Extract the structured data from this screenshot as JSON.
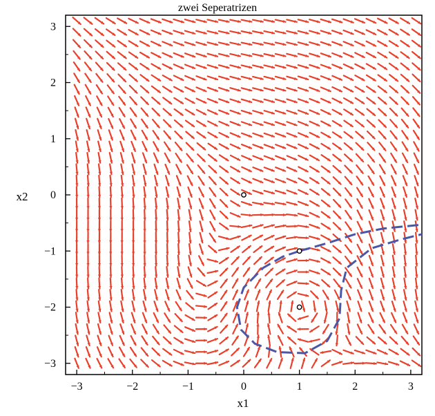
{
  "chart_data": {
    "type": "vector-field",
    "title": "zwei Seperatrizen",
    "xlabel": "x1",
    "ylabel": "x2",
    "xlim": [
      -3.2,
      3.2
    ],
    "ylim": [
      -3.2,
      3.2
    ],
    "xticks": [
      -3,
      -2,
      -1,
      0,
      1,
      2,
      3
    ],
    "yticks": [
      -3,
      -2,
      -1,
      0,
      1,
      2,
      3
    ],
    "xtick_labels": [
      "−3",
      "−2",
      "−1",
      "0",
      "1",
      "2",
      "3"
    ],
    "ytick_labels": [
      "−3",
      "−2",
      "−1",
      "0",
      "1",
      "2",
      "3"
    ],
    "grid": false,
    "field_grid": {
      "x_start": -3,
      "x_end": 3.1,
      "x_count": 31,
      "y_start": -3,
      "y_end": 3.1,
      "y_count": 31
    },
    "equilibria": [
      {
        "x": 0,
        "y": 0
      },
      {
        "x": 1,
        "y": -1
      },
      {
        "x": 1,
        "y": -2
      }
    ],
    "separatrices": [
      {
        "points": [
          [
            1.0,
            -1.0
          ],
          [
            1.5,
            -0.86
          ],
          [
            2.0,
            -0.7
          ],
          [
            2.5,
            -0.6
          ],
          [
            3.2,
            -0.53
          ]
        ]
      },
      {
        "points": [
          [
            1.0,
            -1.0
          ],
          [
            0.7,
            -1.1
          ],
          [
            0.35,
            -1.3
          ],
          [
            0.0,
            -1.65
          ],
          [
            -0.12,
            -2.0
          ],
          [
            -0.05,
            -2.4
          ],
          [
            0.2,
            -2.65
          ],
          [
            0.6,
            -2.8
          ],
          [
            1.1,
            -2.82
          ],
          [
            1.5,
            -2.6
          ],
          [
            1.72,
            -2.2
          ],
          [
            1.75,
            -1.7
          ],
          [
            1.85,
            -1.3
          ],
          [
            2.3,
            -0.95
          ],
          [
            2.8,
            -0.8
          ],
          [
            3.2,
            -0.7
          ]
        ]
      }
    ],
    "colors": {
      "arrows": "#e8402a",
      "separatrix": "#4a56a6",
      "axes": "#000000"
    }
  }
}
